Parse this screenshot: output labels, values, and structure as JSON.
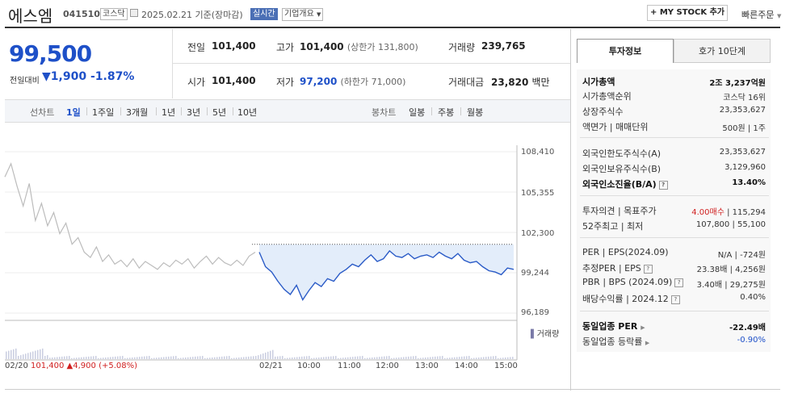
{
  "header": {
    "name": "에스엠",
    "code": "041510",
    "market": "코스닥",
    "date_text": "2025.02.21 기준(장마감)",
    "realtime": "실시간",
    "company_info": "기업개요",
    "mystock": "+ MY STOCK 추가",
    "quick_order": "빠른주문"
  },
  "quote": {
    "price": "99,500",
    "change_label": "전일대비",
    "change": "1,900",
    "change_pct": "-1.87%",
    "prev_close_label": "전일",
    "prev_close": "101,400",
    "high_label": "고가",
    "high": "101,400",
    "upper_limit": "(상한가 131,800)",
    "volume_label": "거래량",
    "volume": "239,765",
    "open_label": "시가",
    "open": "101,400",
    "low_label": "저가",
    "low": "97,200",
    "lower_limit": "(하한가 71,000)",
    "amount_label": "거래대금",
    "amount": "23,820",
    "amount_unit": "백만"
  },
  "chart_tabs": {
    "line_label": "선차트",
    "periods": [
      "1일",
      "1주일",
      "3개월",
      "1년",
      "3년",
      "5년",
      "10년"
    ],
    "candle_label": "봉차트",
    "candles": [
      "일봉",
      "주봉",
      "월봉"
    ]
  },
  "chart_data": {
    "type": "line",
    "yticks": [
      "108,410",
      "105,355",
      "102,300",
      "99,244",
      "96,189"
    ],
    "ylim": [
      96189,
      108410
    ],
    "prev_close": 101400,
    "x_labels": [
      "02/20",
      "02/21",
      "10:00",
      "11:00",
      "12:00",
      "13:00",
      "14:00",
      "15:00"
    ],
    "day1_summary": "101,400",
    "day1_change": "4,900",
    "day1_pct": "(+5.08%)",
    "volume_label": "거래량",
    "series": [
      {
        "values": [
          106500,
          107500,
          105800,
          104300,
          106000,
          103200,
          104500,
          102800,
          103800,
          102200,
          103000,
          101400,
          101900,
          100800,
          100400,
          101200,
          100100,
          100600,
          99900,
          100200,
          99700,
          100300,
          99600,
          100100,
          99800,
          99500,
          100000,
          99700,
          100200,
          99900,
          100300,
          99600,
          100100,
          100500,
          99900,
          100400,
          100000,
          99800,
          100200,
          99800,
          100500,
          100800
        ]
      },
      {
        "values": [
          100800,
          99700,
          99300,
          98600,
          98000,
          97600,
          98300,
          97200,
          97900,
          98500,
          98200,
          98800,
          98600,
          99200,
          99500,
          99900,
          99700,
          100200,
          100600,
          100100,
          100300,
          100900,
          100500,
          100400,
          100700,
          100300,
          100500,
          100600,
          100400,
          100800,
          100500,
          100300,
          100700,
          100200,
          100000,
          100100,
          99700,
          99400,
          99300,
          99100,
          99600,
          99500
        ]
      }
    ]
  },
  "right_panel": {
    "tab_invest": "투자정보",
    "tab_hoga": "호가 10단계",
    "rows1": [
      {
        "label": "시가총액",
        "value": "2조 3,237억원"
      },
      {
        "label": "시가총액순위",
        "value": "코스닥 16위"
      },
      {
        "label": "상장주식수",
        "value": "23,353,627"
      },
      {
        "label": "액면가 | 매매단위",
        "value": "500원 | 1주"
      }
    ],
    "rows2": [
      {
        "label": "외국인한도주식수(A)",
        "value": "23,353,627"
      },
      {
        "label": "외국인보유주식수(B)",
        "value": "3,129,960"
      },
      {
        "label": "외국인소진율(B/A)",
        "value": "13.40%"
      }
    ],
    "opinion_label": "투자의견 | 목표주가",
    "opinion": "4.00매수",
    "target": "| 115,294",
    "wk52_label": "52주최고 | 최저",
    "wk52": "107,800 | 55,100",
    "rows4": [
      {
        "label": "PER | EPS(2024.09)",
        "value": "N/A | -724원"
      },
      {
        "label": "추정PER | EPS",
        "value": "23.38배 | 4,256원"
      },
      {
        "label": "PBR | BPS (2024.09)",
        "value": "3.40배 | 29,275원"
      },
      {
        "label": "배당수익률 | 2024.12",
        "value": "0.40%"
      }
    ],
    "industry_per_label": "동일업종 PER",
    "industry_per": "-22.49배",
    "industry_rate_label": "동일업종 등락률",
    "industry_rate": "-0.90%"
  }
}
